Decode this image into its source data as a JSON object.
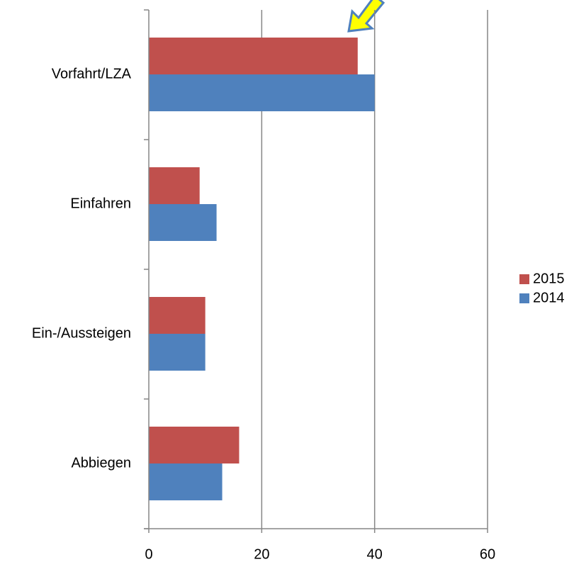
{
  "chart_data": {
    "type": "bar",
    "orientation": "horizontal",
    "categories": [
      "Vorfahrt/LZA",
      "Einfahren",
      "Ein-/Aussteigen",
      "Abbiegen"
    ],
    "series": [
      {
        "name": "2015",
        "color": "#c0504d",
        "values": [
          37,
          9,
          10,
          16
        ]
      },
      {
        "name": "2014",
        "color": "#4f81bd",
        "values": [
          40,
          12,
          10,
          13
        ]
      }
    ],
    "xlim": [
      0,
      60
    ],
    "xticks": [
      0,
      20,
      40,
      60
    ],
    "grid": true,
    "legend": "right"
  }
}
